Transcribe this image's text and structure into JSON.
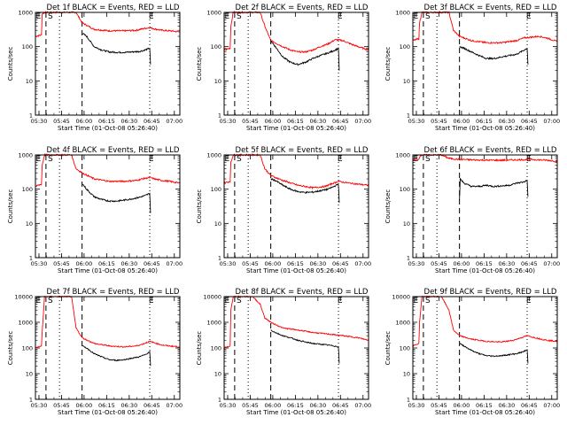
{
  "figure": {
    "ylabel": "Counts/sec",
    "xlabel": "Start Time (01-Oct-08 05:26:40)",
    "x_ticks": [
      "05:30",
      "05:45",
      "06:00",
      "06:15",
      "06:30",
      "06:45",
      "07:00"
    ],
    "y_ticks": [
      "1",
      "10",
      "100",
      "1000",
      "10000"
    ],
    "colors": {
      "events": "#000000",
      "lld": "#ff0000",
      "frame": "#000000"
    }
  },
  "chart_data": [
    {
      "type": "line",
      "title": "Det 1f BLACK = Events, RED = LLD",
      "ylim": [
        1,
        1000
      ],
      "y_scale": "log",
      "xlim": [
        1,
        97
      ],
      "x_unit": "minutes after 05:26:40",
      "markers": {
        "E1": 3,
        "S": 8,
        "E2": 78
      },
      "dashed_x": [
        8,
        32
      ],
      "dotted_x": [
        17,
        77
      ],
      "series": [
        {
          "name": "LLD",
          "color": "#ff0000",
          "x": [
            1,
            5,
            5.5,
            7,
            7.5,
            8,
            28,
            32,
            40,
            50,
            60,
            68,
            72,
            77,
            80,
            85,
            90,
            97
          ],
          "y": [
            200,
            220,
            900,
            1000,
            1000,
            1000,
            1000,
            500,
            320,
            290,
            290,
            300,
            330,
            360,
            330,
            300,
            290,
            270
          ]
        },
        {
          "name": "Events",
          "color": "#000000",
          "x": [
            32,
            35,
            40,
            45,
            50,
            55,
            60,
            65,
            70,
            74,
            77,
            77.5
          ],
          "y": [
            250,
            200,
            100,
            80,
            70,
            68,
            68,
            70,
            72,
            80,
            90,
            30
          ]
        }
      ]
    },
    {
      "type": "line",
      "title": "Det 2f BLACK = Events, RED = LLD",
      "ylim": [
        1,
        1000
      ],
      "y_scale": "log",
      "xlim": [
        1,
        97
      ],
      "x_unit": "minutes after 05:26:40",
      "markers": {
        "E1": 3,
        "S": 8,
        "E2": 78
      },
      "dashed_x": [
        8,
        32
      ],
      "dotted_x": [
        17,
        77
      ],
      "series": [
        {
          "name": "LLD",
          "color": "#ff0000",
          "x": [
            1,
            5,
            5.5,
            7,
            7.5,
            8,
            25,
            28,
            32,
            40,
            45,
            50,
            55,
            60,
            65,
            70,
            75,
            80,
            85,
            90,
            97
          ],
          "y": [
            80,
            90,
            400,
            1000,
            1000,
            1000,
            1000,
            400,
            150,
            100,
            80,
            70,
            70,
            80,
            100,
            120,
            160,
            150,
            120,
            100,
            80
          ]
        },
        {
          "name": "Events",
          "color": "#000000",
          "x": [
            32,
            35,
            40,
            45,
            50,
            55,
            60,
            65,
            70,
            75,
            77,
            77.5
          ],
          "y": [
            150,
            100,
            50,
            35,
            30,
            35,
            45,
            55,
            65,
            80,
            90,
            20
          ]
        }
      ]
    },
    {
      "type": "line",
      "title": "Det 3f BLACK = Events, RED = LLD",
      "ylim": [
        1,
        1000
      ],
      "y_scale": "log",
      "xlim": [
        1,
        97
      ],
      "x_unit": "minutes after 05:26:40",
      "markers": {
        "E1": 3,
        "S": 8,
        "E2": 78
      },
      "dashed_x": [
        8,
        32
      ],
      "dotted_x": [
        17,
        77
      ],
      "series": [
        {
          "name": "LLD",
          "color": "#ff0000",
          "x": [
            1,
            5,
            5.5,
            7,
            7.5,
            8,
            25,
            28,
            32,
            40,
            50,
            60,
            70,
            75,
            80,
            85,
            90,
            97
          ],
          "y": [
            150,
            170,
            500,
            1000,
            1000,
            1000,
            1000,
            300,
            200,
            150,
            130,
            130,
            150,
            180,
            190,
            200,
            180,
            140
          ]
        },
        {
          "name": "Events",
          "color": "#000000",
          "x": [
            32,
            35,
            40,
            45,
            50,
            55,
            60,
            65,
            70,
            74,
            77,
            77.5
          ],
          "y": [
            100,
            90,
            70,
            55,
            45,
            45,
            50,
            55,
            60,
            75,
            90,
            30
          ]
        }
      ]
    },
    {
      "type": "line",
      "title": "Det 4f BLACK = Events, RED = LLD",
      "ylim": [
        1,
        1000
      ],
      "y_scale": "log",
      "xlim": [
        1,
        97
      ],
      "x_unit": "minutes after 05:26:40",
      "markers": {
        "E1": 3,
        "S": 8,
        "E2": 78
      },
      "dashed_x": [
        8,
        32
      ],
      "dotted_x": [
        17,
        77
      ],
      "series": [
        {
          "name": "LLD",
          "color": "#ff0000",
          "x": [
            1,
            5,
            5.5,
            7,
            7.5,
            8,
            25,
            28,
            32,
            40,
            50,
            60,
            68,
            72,
            77,
            80,
            85,
            90,
            97
          ],
          "y": [
            120,
            140,
            500,
            1000,
            1000,
            1000,
            1000,
            400,
            300,
            200,
            170,
            170,
            180,
            200,
            220,
            200,
            180,
            170,
            150
          ]
        },
        {
          "name": "Events",
          "color": "#000000",
          "x": [
            32,
            35,
            40,
            45,
            50,
            55,
            60,
            65,
            70,
            74,
            77,
            77.5
          ],
          "y": [
            150,
            100,
            60,
            50,
            45,
            45,
            48,
            52,
            58,
            65,
            75,
            20
          ]
        }
      ]
    },
    {
      "type": "line",
      "title": "Det 5f BLACK = Events, RED = LLD",
      "ylim": [
        1,
        1000
      ],
      "y_scale": "log",
      "xlim": [
        1,
        97
      ],
      "x_unit": "minutes after 05:26:40",
      "markers": {
        "E1": 3,
        "S": 8,
        "E2": 78
      },
      "dashed_x": [
        8,
        32
      ],
      "dotted_x": [
        17,
        77
      ],
      "series": [
        {
          "name": "LLD",
          "color": "#ff0000",
          "x": [
            1,
            5,
            5.5,
            7,
            7.5,
            8,
            25,
            28,
            32,
            40,
            50,
            60,
            68,
            72,
            77,
            80,
            85,
            90,
            97
          ],
          "y": [
            150,
            170,
            600,
            1000,
            1000,
            1000,
            1000,
            400,
            250,
            180,
            130,
            110,
            120,
            140,
            170,
            160,
            150,
            140,
            130
          ]
        },
        {
          "name": "Events",
          "color": "#000000",
          "x": [
            32,
            35,
            40,
            45,
            50,
            55,
            60,
            65,
            70,
            74,
            77,
            77.5
          ],
          "y": [
            200,
            180,
            130,
            100,
            85,
            80,
            82,
            90,
            100,
            120,
            140,
            40
          ]
        }
      ]
    },
    {
      "type": "line",
      "title": "Det 6f BLACK = Events, RED = LLD",
      "ylim": [
        1,
        1000
      ],
      "y_scale": "log",
      "xlim": [
        1,
        97
      ],
      "x_unit": "minutes after 05:26:40",
      "markers": {
        "E1": 3,
        "S": 8,
        "E2": 78
      },
      "dashed_x": [
        8,
        32
      ],
      "dotted_x": [
        17,
        77
      ],
      "series": [
        {
          "name": "LLD",
          "color": "#ff0000",
          "x": [
            1,
            5,
            5.5,
            7,
            8,
            20,
            25,
            30,
            40,
            50,
            60,
            70,
            80,
            90,
            97
          ],
          "y": [
            700,
            750,
            900,
            1000,
            1000,
            1000,
            800,
            750,
            720,
            700,
            700,
            720,
            740,
            700,
            650
          ]
        },
        {
          "name": "Events",
          "color": "#000000",
          "x": [
            32,
            32.5,
            35,
            40,
            45,
            50,
            55,
            60,
            65,
            70,
            74,
            77,
            77.5
          ],
          "y": [
            50,
            200,
            150,
            120,
            120,
            130,
            120,
            125,
            130,
            150,
            160,
            180,
            60
          ]
        }
      ]
    },
    {
      "type": "line",
      "title": "Det 7f BLACK = Events, RED = LLD",
      "ylim": [
        1,
        10000
      ],
      "y_scale": "log",
      "xlim": [
        1,
        97
      ],
      "x_unit": "minutes after 05:26:40",
      "markers": {
        "E1": 3,
        "S": 8,
        "E2": 78
      },
      "dashed_x": [
        8,
        32
      ],
      "dotted_x": [
        17,
        77
      ],
      "series": [
        {
          "name": "LLD",
          "color": "#ff0000",
          "x": [
            1,
            5,
            5.5,
            7,
            8,
            25,
            28,
            32,
            40,
            50,
            60,
            68,
            72,
            77,
            80,
            85,
            90,
            97
          ],
          "y": [
            100,
            120,
            400,
            10000,
            10000,
            10000,
            600,
            250,
            150,
            120,
            110,
            120,
            140,
            180,
            160,
            130,
            120,
            110
          ]
        },
        {
          "name": "Events",
          "color": "#000000",
          "x": [
            32,
            35,
            40,
            45,
            50,
            55,
            60,
            65,
            70,
            74,
            77,
            77.5
          ],
          "y": [
            120,
            100,
            60,
            45,
            35,
            33,
            35,
            40,
            45,
            55,
            70,
            20
          ]
        }
      ]
    },
    {
      "type": "line",
      "title": "Det 8f BLACK = Events, RED = LLD",
      "ylim": [
        1,
        10000
      ],
      "y_scale": "log",
      "xlim": [
        1,
        97
      ],
      "x_unit": "minutes after 05:26:40",
      "markers": {
        "E1": 3,
        "S": 8,
        "E2": 78
      },
      "dashed_x": [
        8,
        32
      ],
      "dotted_x": [
        17,
        77
      ],
      "series": [
        {
          "name": "LLD",
          "color": "#ff0000",
          "x": [
            1,
            5,
            5.5,
            7,
            8,
            20,
            25,
            28,
            32,
            40,
            50,
            60,
            70,
            80,
            90,
            97
          ],
          "y": [
            100,
            120,
            3000,
            10000,
            10000,
            10000,
            5000,
            1500,
            1000,
            600,
            500,
            400,
            350,
            300,
            250,
            200
          ]
        },
        {
          "name": "Events",
          "color": "#000000",
          "x": [
            32,
            35,
            40,
            45,
            50,
            55,
            60,
            65,
            70,
            74,
            77,
            77.5
          ],
          "y": [
            500,
            400,
            300,
            250,
            200,
            170,
            150,
            140,
            130,
            120,
            110,
            25
          ]
        }
      ]
    },
    {
      "type": "line",
      "title": "Det 9f BLACK = Events, RED = LLD",
      "ylim": [
        1,
        10000
      ],
      "y_scale": "log",
      "xlim": [
        1,
        97
      ],
      "x_unit": "minutes after 05:26:40",
      "markers": {
        "E1": 3,
        "S": 8,
        "E2": 78
      },
      "dashed_x": [
        8,
        32
      ],
      "dotted_x": [
        17,
        77
      ],
      "series": [
        {
          "name": "LLD",
          "color": "#ff0000",
          "x": [
            1,
            5,
            5.5,
            7,
            8,
            20,
            25,
            28,
            32,
            40,
            50,
            60,
            68,
            72,
            77,
            80,
            85,
            90,
            97
          ],
          "y": [
            120,
            150,
            1000,
            10000,
            10000,
            10000,
            3000,
            500,
            300,
            220,
            180,
            170,
            200,
            240,
            300,
            270,
            230,
            200,
            180
          ]
        },
        {
          "name": "Events",
          "color": "#000000",
          "x": [
            32,
            35,
            40,
            45,
            50,
            55,
            60,
            65,
            70,
            74,
            77,
            77.5
          ],
          "y": [
            150,
            120,
            80,
            60,
            50,
            48,
            50,
            55,
            60,
            70,
            85,
            25
          ]
        }
      ]
    }
  ]
}
